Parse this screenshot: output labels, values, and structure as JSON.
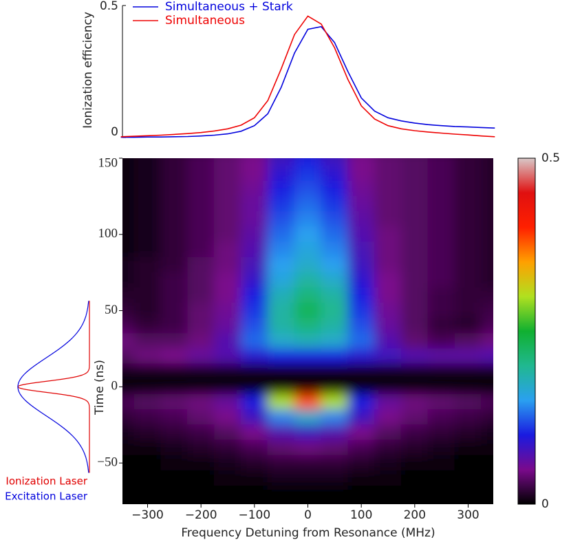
{
  "chart_data": [
    {
      "type": "line",
      "ylabel": "Ionization efficiency",
      "legend": "upper left",
      "x": [
        -350,
        -325,
        -300,
        -275,
        -250,
        -225,
        -200,
        -175,
        -150,
        -125,
        -100,
        -75,
        -50,
        -25,
        0,
        25,
        50,
        75,
        100,
        125,
        150,
        175,
        200,
        225,
        250,
        275,
        300,
        325,
        350
      ],
      "xlim": [
        -347,
        347
      ],
      "ylim": [
        0,
        0.5
      ],
      "yticks": [
        0,
        0.5
      ],
      "series": [
        {
          "name": "Simultaneous  + Stark",
          "color": "#0000dd",
          "values": [
            0.001,
            0.001,
            0.002,
            0.002,
            0.003,
            0.004,
            0.006,
            0.009,
            0.014,
            0.024,
            0.045,
            0.09,
            0.19,
            0.32,
            0.41,
            0.42,
            0.36,
            0.25,
            0.15,
            0.1,
            0.075,
            0.063,
            0.055,
            0.049,
            0.045,
            0.042,
            0.04,
            0.038,
            0.036
          ]
        },
        {
          "name": "Simultaneous",
          "color": "#ee0000",
          "values": [
            0.003,
            0.005,
            0.007,
            0.009,
            0.012,
            0.015,
            0.019,
            0.025,
            0.033,
            0.047,
            0.075,
            0.14,
            0.26,
            0.39,
            0.46,
            0.43,
            0.34,
            0.22,
            0.12,
            0.07,
            0.045,
            0.033,
            0.026,
            0.021,
            0.017,
            0.013,
            0.01,
            0.006,
            0.003
          ]
        }
      ]
    },
    {
      "type": "heatmap",
      "xlabel": "Frequency Detuning from Resonance (MHz)",
      "ylabel": "Time (ns)",
      "xlim": [
        -347,
        347
      ],
      "ylim": [
        -77,
        150
      ],
      "xticks": [
        {
          "value": -300,
          "label": "−300"
        },
        {
          "value": -200,
          "label": "−200"
        },
        {
          "value": -100,
          "label": "−100"
        },
        0,
        100,
        200,
        300
      ],
      "yticks": [
        {
          "value": -50,
          "label": "−50"
        },
        0,
        50,
        100,
        150
      ],
      "zlim": [
        0,
        0.5
      ],
      "zticks": [
        0,
        0.5
      ],
      "colorscale": [
        "#000000",
        "#7a0a8c",
        "#1a1ae0",
        "#2aa0f0",
        "#20b890",
        "#10b030",
        "#b0e020",
        "#ffa000",
        "#ff2000",
        "#e01010",
        "#d8c8c8"
      ],
      "x": [
        -350,
        -300,
        -250,
        -200,
        -150,
        -100,
        -50,
        0,
        50,
        100,
        150,
        200,
        250,
        300,
        350
      ],
      "y": [
        150,
        140,
        130,
        120,
        110,
        100,
        90,
        80,
        70,
        60,
        50,
        40,
        30,
        20,
        10,
        0,
        -10,
        -20,
        -30,
        -40,
        -50,
        -60,
        -70
      ],
      "z": [
        [
          0.005,
          0.01,
          0.02,
          0.03,
          0.04,
          0.05,
          0.08,
          0.1,
          0.08,
          0.05,
          0.04,
          0.035,
          0.03,
          0.02,
          0.015
        ],
        [
          0.005,
          0.01,
          0.02,
          0.03,
          0.04,
          0.05,
          0.09,
          0.11,
          0.09,
          0.05,
          0.04,
          0.035,
          0.03,
          0.02,
          0.015
        ],
        [
          0.005,
          0.01,
          0.02,
          0.03,
          0.04,
          0.055,
          0.1,
          0.12,
          0.1,
          0.055,
          0.04,
          0.035,
          0.03,
          0.02,
          0.015
        ],
        [
          0.005,
          0.01,
          0.02,
          0.03,
          0.04,
          0.06,
          0.11,
          0.13,
          0.11,
          0.06,
          0.04,
          0.035,
          0.03,
          0.02,
          0.015
        ],
        [
          0.005,
          0.01,
          0.02,
          0.03,
          0.04,
          0.06,
          0.12,
          0.14,
          0.12,
          0.065,
          0.04,
          0.035,
          0.03,
          0.02,
          0.015
        ],
        [
          0.005,
          0.01,
          0.02,
          0.03,
          0.04,
          0.065,
          0.13,
          0.15,
          0.13,
          0.07,
          0.045,
          0.035,
          0.03,
          0.02,
          0.015
        ],
        [
          0.005,
          0.01,
          0.02,
          0.03,
          0.045,
          0.07,
          0.14,
          0.16,
          0.14,
          0.075,
          0.045,
          0.035,
          0.03,
          0.02,
          0.015
        ],
        [
          0.01,
          0.015,
          0.02,
          0.035,
          0.045,
          0.075,
          0.15,
          0.17,
          0.15,
          0.08,
          0.045,
          0.035,
          0.03,
          0.02,
          0.015
        ],
        [
          0.01,
          0.015,
          0.025,
          0.035,
          0.05,
          0.085,
          0.16,
          0.19,
          0.17,
          0.09,
          0.05,
          0.035,
          0.03,
          0.02,
          0.015
        ],
        [
          0.015,
          0.015,
          0.025,
          0.035,
          0.05,
          0.1,
          0.18,
          0.21,
          0.19,
          0.1,
          0.05,
          0.035,
          0.025,
          0.02,
          0.02
        ],
        [
          0.02,
          0.015,
          0.025,
          0.04,
          0.055,
          0.11,
          0.19,
          0.23,
          0.2,
          0.11,
          0.055,
          0.035,
          0.025,
          0.02,
          0.025
        ],
        [
          0.03,
          0.02,
          0.025,
          0.04,
          0.06,
          0.12,
          0.19,
          0.21,
          0.19,
          0.12,
          0.06,
          0.035,
          0.02,
          0.015,
          0.03
        ],
        [
          0.045,
          0.035,
          0.035,
          0.045,
          0.07,
          0.13,
          0.17,
          0.18,
          0.17,
          0.13,
          0.07,
          0.04,
          0.03,
          0.035,
          0.045
        ],
        [
          0.035,
          0.045,
          0.05,
          0.06,
          0.07,
          0.09,
          0.1,
          0.1,
          0.1,
          0.09,
          0.08,
          0.07,
          0.065,
          0.065,
          0.07
        ],
        [
          0.01,
          0.01,
          0.01,
          0.01,
          0.01,
          0.01,
          0.01,
          0.01,
          0.01,
          0.01,
          0.01,
          0.01,
          0.01,
          0.01,
          0.01
        ],
        [
          0,
          0,
          0,
          0,
          0,
          0,
          0,
          0,
          0,
          0,
          0,
          0,
          0,
          0,
          0
        ],
        [
          0.03,
          0.035,
          0.04,
          0.045,
          0.06,
          0.1,
          0.3,
          0.38,
          0.3,
          0.1,
          0.06,
          0.045,
          0.04,
          0.035,
          0.03
        ],
        [
          0.02,
          0.025,
          0.03,
          0.04,
          0.05,
          0.08,
          0.14,
          0.17,
          0.14,
          0.08,
          0.05,
          0.04,
          0.03,
          0.025,
          0.02
        ],
        [
          0.01,
          0.015,
          0.02,
          0.025,
          0.035,
          0.05,
          0.07,
          0.08,
          0.07,
          0.05,
          0.035,
          0.025,
          0.02,
          0.015,
          0.01
        ],
        [
          0.005,
          0.005,
          0.01,
          0.015,
          0.02,
          0.03,
          0.04,
          0.045,
          0.04,
          0.03,
          0.02,
          0.015,
          0.01,
          0.005,
          0.005
        ],
        [
          0,
          0,
          0.005,
          0.005,
          0.01,
          0.015,
          0.02,
          0.02,
          0.02,
          0.015,
          0.01,
          0.005,
          0.005,
          0,
          0
        ],
        [
          0,
          0,
          0,
          0,
          0.005,
          0.005,
          0.01,
          0.01,
          0.01,
          0.005,
          0.005,
          0,
          0,
          0,
          0
        ],
        [
          0,
          0,
          0,
          0,
          0,
          0,
          0,
          0,
          0,
          0,
          0,
          0,
          0,
          0,
          0
        ]
      ],
      "annotations": [
        {
          "text": "Ionization Laser",
          "color": "#e00000"
        },
        {
          "text": "Excitation Laser",
          "color": "#0000dd"
        }
      ]
    }
  ]
}
